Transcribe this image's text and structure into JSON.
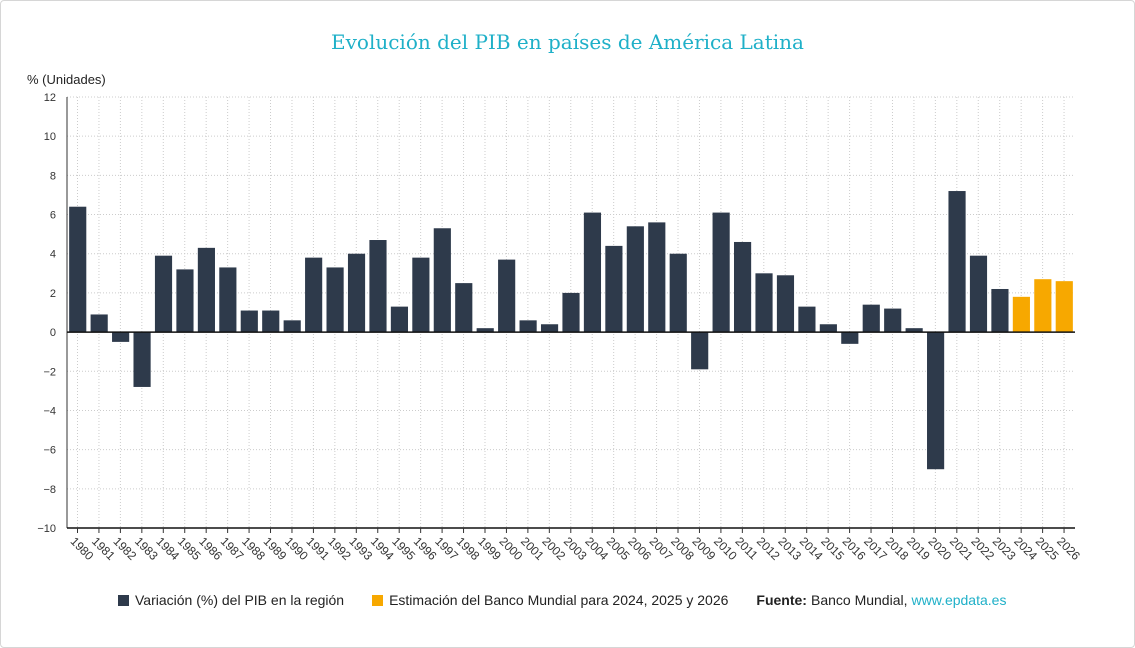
{
  "chart_data": {
    "type": "bar",
    "title": "Evolución del PIB en países de América Latina",
    "ylabel": "% (Unidades)",
    "ylim": [
      -10,
      12
    ],
    "yticks": [
      12,
      10,
      8,
      6,
      4,
      2,
      0,
      -2,
      -4,
      -6,
      -8,
      -10
    ],
    "ytick_labels": [
      "12",
      "10",
      "8",
      "6",
      "4",
      "2",
      "0",
      "−2",
      "−4",
      "−6",
      "−8",
      "−10"
    ],
    "grid": true,
    "legend_position": "bottom",
    "colors": {
      "historical": "#2e3a4b",
      "estimate": "#f7a800",
      "accent": "#1fb0c8"
    },
    "categories": [
      "1980",
      "1981",
      "1982",
      "1983",
      "1984",
      "1985",
      "1986",
      "1987",
      "1988",
      "1989",
      "1990",
      "1991",
      "1992",
      "1993",
      "1994",
      "1995",
      "1996",
      "1997",
      "1998",
      "1999",
      "2000",
      "2001",
      "2002",
      "2003",
      "2004",
      "2005",
      "2006",
      "2007",
      "2008",
      "2009",
      "2010",
      "2011",
      "2012",
      "2013",
      "2014",
      "2015",
      "2016",
      "2017",
      "2018",
      "2019",
      "2020",
      "2021",
      "2022",
      "2023",
      "2024",
      "2025",
      "2026"
    ],
    "series": [
      {
        "name": "Variación (%) del PIB en la región",
        "values": [
          6.4,
          0.9,
          -0.5,
          -2.8,
          3.9,
          3.2,
          4.3,
          3.3,
          1.1,
          1.1,
          0.6,
          3.8,
          3.3,
          4.0,
          4.7,
          1.3,
          3.8,
          5.3,
          2.5,
          0.2,
          3.7,
          0.6,
          0.4,
          2.0,
          6.1,
          4.4,
          5.4,
          5.6,
          4.0,
          -1.9,
          6.1,
          4.6,
          3.0,
          2.9,
          1.3,
          0.4,
          -0.6,
          1.4,
          1.2,
          0.2,
          -7.0,
          7.2,
          3.9,
          2.2,
          null,
          null,
          null
        ]
      },
      {
        "name": "Estimación del Banco Mundial para 2024, 2025 y 2026",
        "values": [
          null,
          null,
          null,
          null,
          null,
          null,
          null,
          null,
          null,
          null,
          null,
          null,
          null,
          null,
          null,
          null,
          null,
          null,
          null,
          null,
          null,
          null,
          null,
          null,
          null,
          null,
          null,
          null,
          null,
          null,
          null,
          null,
          null,
          null,
          null,
          null,
          null,
          null,
          null,
          null,
          null,
          null,
          null,
          null,
          1.8,
          2.7,
          2.6
        ]
      }
    ],
    "source": {
      "label": "Fuente:",
      "text": "Banco Mundial,",
      "link": "www.epdata.es"
    }
  }
}
